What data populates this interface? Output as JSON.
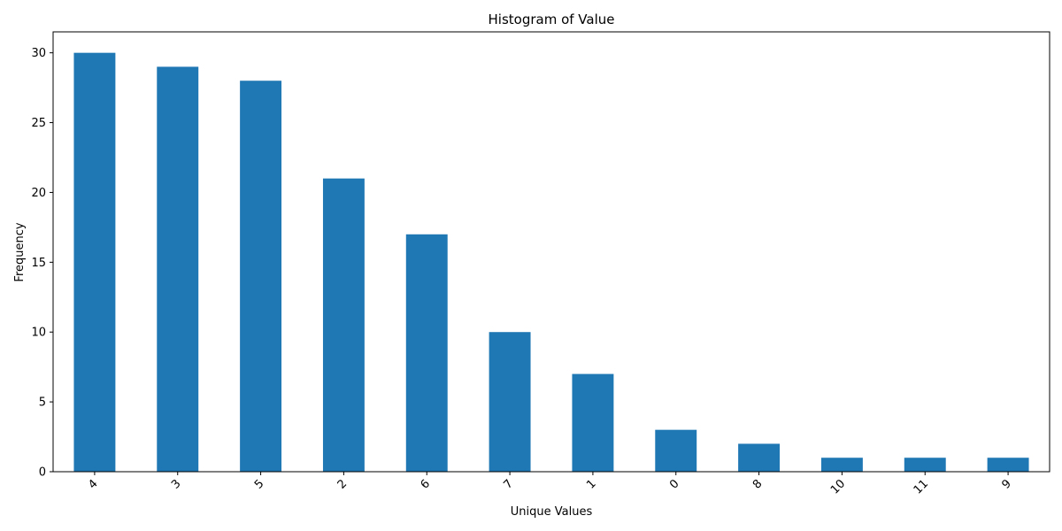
{
  "chart_data": {
    "type": "bar",
    "title": "Histogram of Value",
    "xlabel": "Unique Values",
    "ylabel": "Frequency",
    "categories": [
      "4",
      "3",
      "5",
      "2",
      "6",
      "7",
      "1",
      "0",
      "8",
      "10",
      "11",
      "9"
    ],
    "values": [
      30,
      29,
      28,
      21,
      17,
      10,
      7,
      3,
      2,
      1,
      1,
      1
    ],
    "ylim": [
      0,
      31.5
    ],
    "yticks": [
      0,
      5,
      10,
      15,
      20,
      25,
      30
    ],
    "x_tick_rotation": 45,
    "bar_color": "#1f77b4",
    "grid": false,
    "legend": "none"
  }
}
